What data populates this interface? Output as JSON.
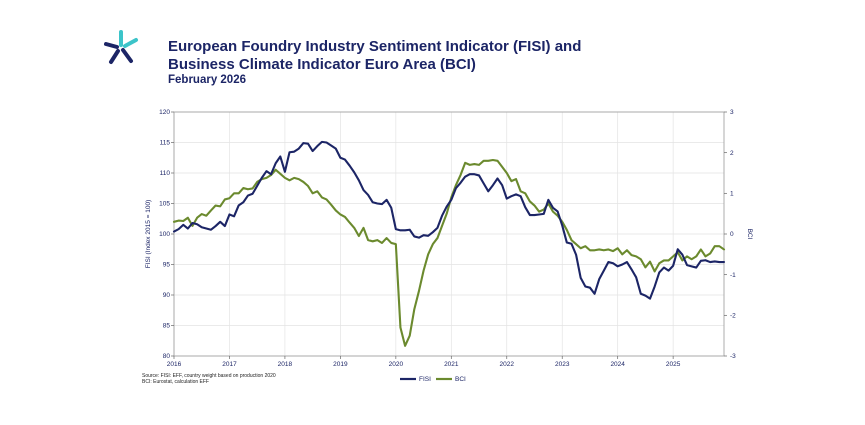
{
  "header": {
    "title_line1": "European Foundry Industry Sentiment Indicator (FISI) and",
    "title_line2": "Business Climate Indicator Euro Area (BCI)",
    "subtitle": "February 2026"
  },
  "footer": {
    "source_line1": "Source: FISI: EFF, country weight based on production 2020",
    "source_line2": "BCI: Eurostat, calculation EFF"
  },
  "logo": {
    "icon": "asterisk-spark-logo-icon",
    "colors": [
      "#1c2566",
      "#3cc4c9"
    ]
  },
  "colors": {
    "fisi": "#1c2566",
    "bci": "#6b8a2e",
    "text": "#1c2566",
    "grid": "#e3e3e3"
  },
  "chart_data": {
    "type": "line",
    "title": "",
    "x_tick_labels": [
      "2016",
      "2017",
      "2018",
      "2019",
      "2020",
      "2021",
      "2022",
      "2023",
      "2024",
      "2025"
    ],
    "xlim": [
      2016,
      2025.917
    ],
    "y_left": {
      "label": "FISI (Index 2015 = 100)",
      "ylim": [
        80,
        120
      ],
      "ticks": [
        80,
        85,
        90,
        95,
        100,
        105,
        110,
        115,
        120
      ]
    },
    "y_right": {
      "label": "BCI",
      "ylim": [
        -3,
        3
      ],
      "ticks": [
        -3,
        -2,
        -1,
        0,
        1,
        2,
        3
      ]
    },
    "grid": true,
    "legend": {
      "position": "bottom-right"
    },
    "series": [
      {
        "name": "FISI",
        "axis": "left",
        "x": [
          2016.0,
          2016.083,
          2016.167,
          2016.25,
          2016.333,
          2016.417,
          2016.5,
          2016.583,
          2016.667,
          2016.75,
          2016.833,
          2016.917,
          2017.0,
          2017.083,
          2017.167,
          2017.25,
          2017.333,
          2017.417,
          2017.5,
          2017.583,
          2017.667,
          2017.75,
          2017.833,
          2017.917,
          2018.0,
          2018.083,
          2018.167,
          2018.25,
          2018.333,
          2018.417,
          2018.5,
          2018.583,
          2018.667,
          2018.75,
          2018.833,
          2018.917,
          2019.0,
          2019.083,
          2019.167,
          2019.25,
          2019.333,
          2019.417,
          2019.5,
          2019.583,
          2019.667,
          2019.75,
          2019.833,
          2019.917,
          2020.0,
          2020.083,
          2020.167,
          2020.25,
          2020.333,
          2020.417,
          2020.5,
          2020.583,
          2020.667,
          2020.75,
          2020.833,
          2020.917,
          2021.0,
          2021.083,
          2021.167,
          2021.25,
          2021.333,
          2021.417,
          2021.5,
          2021.583,
          2021.667,
          2021.75,
          2021.833,
          2021.917,
          2022.0,
          2022.083,
          2022.167,
          2022.25,
          2022.333,
          2022.417,
          2022.5,
          2022.583,
          2022.667,
          2022.75,
          2022.833,
          2022.917,
          2023.0,
          2023.083,
          2023.167,
          2023.25,
          2023.333,
          2023.417,
          2023.5,
          2023.583,
          2023.667,
          2023.75,
          2023.833,
          2023.917,
          2024.0,
          2024.083,
          2024.167,
          2024.25,
          2024.333,
          2024.417,
          2024.5,
          2024.583,
          2024.667,
          2024.75,
          2024.833,
          2024.917,
          2025.0,
          2025.083,
          2025.167,
          2025.25,
          2025.333,
          2025.417,
          2025.5,
          2025.583,
          2025.667,
          2025.75,
          2025.833,
          2025.917
        ],
        "values": [
          100.4,
          100.8,
          101.5,
          100.9,
          101.8,
          101.6,
          101.1,
          100.9,
          100.7,
          101.3,
          102.0,
          101.3,
          103.2,
          102.9,
          104.7,
          105.2,
          106.3,
          106.6,
          107.9,
          109.2,
          110.3,
          109.8,
          111.6,
          112.7,
          110.2,
          113.4,
          113.5,
          114.0,
          114.9,
          114.8,
          113.6,
          114.4,
          115.1,
          115.0,
          114.5,
          114.0,
          112.5,
          112.2,
          111.2,
          110.1,
          108.8,
          107.2,
          106.4,
          105.2,
          105.0,
          104.9,
          105.6,
          104.3,
          100.8,
          100.6,
          100.6,
          100.7,
          99.6,
          99.4,
          99.8,
          99.7,
          100.3,
          101.0,
          103.0,
          104.5,
          105.6,
          107.5,
          108.4,
          109.4,
          109.8,
          109.8,
          109.6,
          108.3,
          107.0,
          108.0,
          109.1,
          108.0,
          105.8,
          106.2,
          106.5,
          106.2,
          104.4,
          103.1,
          103.1,
          103.2,
          103.3,
          105.6,
          104.3,
          103.7,
          101.4,
          98.6,
          98.4,
          96.6,
          92.8,
          91.4,
          91.2,
          90.2,
          92.6,
          94.0,
          95.4,
          95.2,
          94.7,
          95.0,
          95.4,
          94.2,
          92.9,
          90.2,
          89.9,
          89.4,
          91.4,
          93.7,
          94.5,
          94.0,
          94.8,
          97.5,
          96.6,
          94.9,
          94.7,
          94.5,
          95.6,
          95.7,
          95.4,
          95.5,
          95.4,
          95.4
        ]
      },
      {
        "name": "BCI",
        "axis": "right",
        "x": [
          2016.0,
          2016.083,
          2016.167,
          2016.25,
          2016.333,
          2016.417,
          2016.5,
          2016.583,
          2016.667,
          2016.75,
          2016.833,
          2016.917,
          2017.0,
          2017.083,
          2017.167,
          2017.25,
          2017.333,
          2017.417,
          2017.5,
          2017.583,
          2017.667,
          2017.75,
          2017.833,
          2017.917,
          2018.0,
          2018.083,
          2018.167,
          2018.25,
          2018.333,
          2018.417,
          2018.5,
          2018.583,
          2018.667,
          2018.75,
          2018.833,
          2018.917,
          2019.0,
          2019.083,
          2019.167,
          2019.25,
          2019.333,
          2019.417,
          2019.5,
          2019.583,
          2019.667,
          2019.75,
          2019.833,
          2019.917,
          2020.0,
          2020.083,
          2020.167,
          2020.25,
          2020.333,
          2020.417,
          2020.5,
          2020.583,
          2020.667,
          2020.75,
          2020.833,
          2020.917,
          2021.0,
          2021.083,
          2021.167,
          2021.25,
          2021.333,
          2021.417,
          2021.5,
          2021.583,
          2021.667,
          2021.75,
          2021.833,
          2021.917,
          2022.0,
          2022.083,
          2022.167,
          2022.25,
          2022.333,
          2022.417,
          2022.5,
          2022.583,
          2022.667,
          2022.75,
          2022.833,
          2022.917,
          2023.0,
          2023.083,
          2023.167,
          2023.25,
          2023.333,
          2023.417,
          2023.5,
          2023.583,
          2023.667,
          2023.75,
          2023.833,
          2023.917,
          2024.0,
          2024.083,
          2024.167,
          2024.25,
          2024.333,
          2024.417,
          2024.5,
          2024.583,
          2024.667,
          2024.75,
          2024.833,
          2024.917,
          2025.0,
          2025.083,
          2025.167,
          2025.25,
          2025.333,
          2025.417,
          2025.5,
          2025.583,
          2025.667,
          2025.75,
          2025.833,
          2025.917
        ],
        "values": [
          0.3,
          0.33,
          0.32,
          0.4,
          0.2,
          0.4,
          0.49,
          0.45,
          0.58,
          0.7,
          0.68,
          0.85,
          0.88,
          1.0,
          1.0,
          1.13,
          1.1,
          1.12,
          1.28,
          1.35,
          1.38,
          1.45,
          1.58,
          1.48,
          1.38,
          1.32,
          1.38,
          1.35,
          1.28,
          1.18,
          1.0,
          1.05,
          0.9,
          0.85,
          0.72,
          0.58,
          0.48,
          0.42,
          0.28,
          0.15,
          -0.05,
          0.15,
          -0.15,
          -0.18,
          -0.15,
          -0.22,
          -0.1,
          -0.22,
          -0.25,
          -2.3,
          -2.75,
          -2.5,
          -1.85,
          -1.4,
          -0.9,
          -0.5,
          -0.25,
          -0.1,
          0.2,
          0.5,
          0.9,
          1.2,
          1.45,
          1.75,
          1.7,
          1.72,
          1.7,
          1.8,
          1.8,
          1.82,
          1.8,
          1.65,
          1.5,
          1.3,
          1.35,
          1.05,
          1.0,
          0.8,
          0.7,
          0.55,
          0.6,
          0.75,
          0.55,
          0.45,
          0.3,
          0.1,
          -0.15,
          -0.25,
          -0.35,
          -0.3,
          -0.4,
          -0.4,
          -0.38,
          -0.4,
          -0.38,
          -0.42,
          -0.35,
          -0.5,
          -0.4,
          -0.52,
          -0.55,
          -0.62,
          -0.82,
          -0.68,
          -0.92,
          -0.72,
          -0.65,
          -0.65,
          -0.55,
          -0.45,
          -0.65,
          -0.55,
          -0.62,
          -0.55,
          -0.38,
          -0.55,
          -0.48,
          -0.3,
          -0.3,
          -0.38
        ]
      }
    ]
  }
}
